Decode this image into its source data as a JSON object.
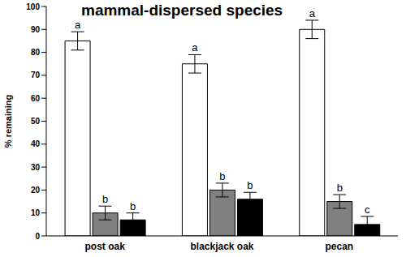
{
  "chart_data": {
    "type": "bar",
    "title": "mammal-dispersed species",
    "y_label": "% remaining",
    "categories": [
      "post oak",
      "blackjack oak",
      "pecan"
    ],
    "series": [
      {
        "color": "#ffffff",
        "values": [
          85,
          75,
          90
        ],
        "errors": [
          4,
          4,
          4
        ],
        "annotations": [
          "a",
          "a",
          "a"
        ]
      },
      {
        "color": "#808080",
        "values": [
          10,
          20,
          15
        ],
        "errors": [
          3,
          3,
          3
        ],
        "annotations": [
          "b",
          "b",
          "b"
        ]
      },
      {
        "color": "#000000",
        "values": [
          7,
          16,
          5
        ],
        "errors": [
          3,
          3,
          3.5
        ],
        "annotations": [
          "b",
          "b",
          "c"
        ]
      }
    ],
    "ylim": [
      0,
      100
    ],
    "yticks": [
      0,
      10,
      20,
      30,
      40,
      50,
      60,
      70,
      80,
      90,
      100
    ],
    "grid": false
  }
}
